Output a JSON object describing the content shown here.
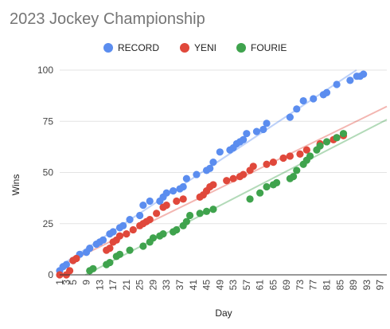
{
  "chart_data": {
    "type": "scatter",
    "title": "2023 Jockey Championship",
    "xlabel": "Day",
    "ylabel": "Wins",
    "xlim": [
      1,
      99
    ],
    "ylim": [
      0,
      100
    ],
    "x_ticks": [
      1,
      3,
      5,
      9,
      13,
      17,
      21,
      25,
      29,
      33,
      37,
      41,
      45,
      49,
      53,
      57,
      61,
      65,
      69,
      73,
      77,
      81,
      85,
      89,
      93,
      97
    ],
    "y_ticks": [
      0,
      25,
      50,
      75,
      100
    ],
    "grid": true,
    "legend_position": "top",
    "trendlines": true,
    "series": [
      {
        "name": "RECORD",
        "color": "#5b8def",
        "points": [
          [
            1,
            2
          ],
          [
            2,
            4
          ],
          [
            3,
            5
          ],
          [
            5,
            7
          ],
          [
            7,
            10
          ],
          [
            9,
            11
          ],
          [
            10,
            13
          ],
          [
            12,
            15
          ],
          [
            13,
            16
          ],
          [
            14,
            17
          ],
          [
            16,
            20
          ],
          [
            17,
            21
          ],
          [
            19,
            23
          ],
          [
            20,
            24
          ],
          [
            22,
            27
          ],
          [
            25,
            29
          ],
          [
            26,
            34
          ],
          [
            28,
            36
          ],
          [
            31,
            36
          ],
          [
            32,
            38
          ],
          [
            33,
            40
          ],
          [
            35,
            41
          ],
          [
            37,
            42
          ],
          [
            38,
            43
          ],
          [
            39,
            47
          ],
          [
            42,
            49
          ],
          [
            45,
            51
          ],
          [
            46,
            52
          ],
          [
            47,
            55
          ],
          [
            49,
            60
          ],
          [
            52,
            61
          ],
          [
            53,
            62
          ],
          [
            54,
            64
          ],
          [
            55,
            65
          ],
          [
            56,
            66
          ],
          [
            57,
            69
          ],
          [
            60,
            70
          ],
          [
            62,
            71
          ],
          [
            63,
            74
          ],
          [
            70,
            77
          ],
          [
            72,
            81
          ],
          [
            74,
            85
          ],
          [
            77,
            86
          ],
          [
            80,
            88
          ],
          [
            81,
            89
          ],
          [
            84,
            93
          ],
          [
            88,
            95
          ],
          [
            90,
            97
          ],
          [
            91,
            97
          ],
          [
            92,
            98
          ]
        ]
      },
      {
        "name": "YENI",
        "color": "#e0483b",
        "points": [
          [
            1,
            0
          ],
          [
            3,
            0
          ],
          [
            4,
            2
          ],
          [
            5,
            7
          ],
          [
            6,
            8
          ],
          [
            15,
            12
          ],
          [
            16,
            13
          ],
          [
            17,
            16
          ],
          [
            18,
            17
          ],
          [
            19,
            19
          ],
          [
            21,
            20
          ],
          [
            23,
            22
          ],
          [
            25,
            24
          ],
          [
            26,
            25
          ],
          [
            27,
            26
          ],
          [
            28,
            27
          ],
          [
            30,
            30
          ],
          [
            32,
            33
          ],
          [
            33,
            34
          ],
          [
            36,
            36
          ],
          [
            38,
            37
          ],
          [
            43,
            38
          ],
          [
            44,
            39
          ],
          [
            45,
            41
          ],
          [
            46,
            43
          ],
          [
            47,
            44
          ],
          [
            51,
            46
          ],
          [
            53,
            47
          ],
          [
            55,
            48
          ],
          [
            56,
            49
          ],
          [
            58,
            51
          ],
          [
            59,
            53
          ],
          [
            63,
            54
          ],
          [
            65,
            55
          ],
          [
            68,
            57
          ],
          [
            70,
            58
          ],
          [
            73,
            59
          ],
          [
            75,
            61
          ],
          [
            79,
            64
          ],
          [
            83,
            66
          ],
          [
            84,
            67
          ],
          [
            86,
            68
          ]
        ]
      },
      {
        "name": "FOURIE",
        "color": "#3fa34d",
        "points": [
          [
            10,
            2
          ],
          [
            11,
            3
          ],
          [
            15,
            5
          ],
          [
            16,
            6
          ],
          [
            18,
            9
          ],
          [
            19,
            10
          ],
          [
            22,
            12
          ],
          [
            26,
            14
          ],
          [
            28,
            16
          ],
          [
            29,
            18
          ],
          [
            31,
            19
          ],
          [
            32,
            20
          ],
          [
            35,
            21
          ],
          [
            36,
            22
          ],
          [
            38,
            24
          ],
          [
            39,
            26
          ],
          [
            40,
            29
          ],
          [
            43,
            30
          ],
          [
            45,
            31
          ],
          [
            47,
            32
          ],
          [
            58,
            37
          ],
          [
            61,
            40
          ],
          [
            63,
            43
          ],
          [
            65,
            44
          ],
          [
            66,
            45
          ],
          [
            70,
            47
          ],
          [
            71,
            48
          ],
          [
            72,
            51
          ],
          [
            74,
            54
          ],
          [
            75,
            56
          ],
          [
            76,
            58
          ],
          [
            78,
            61
          ],
          [
            79,
            63
          ],
          [
            81,
            65
          ],
          [
            84,
            67
          ],
          [
            86,
            69
          ]
        ]
      }
    ]
  }
}
